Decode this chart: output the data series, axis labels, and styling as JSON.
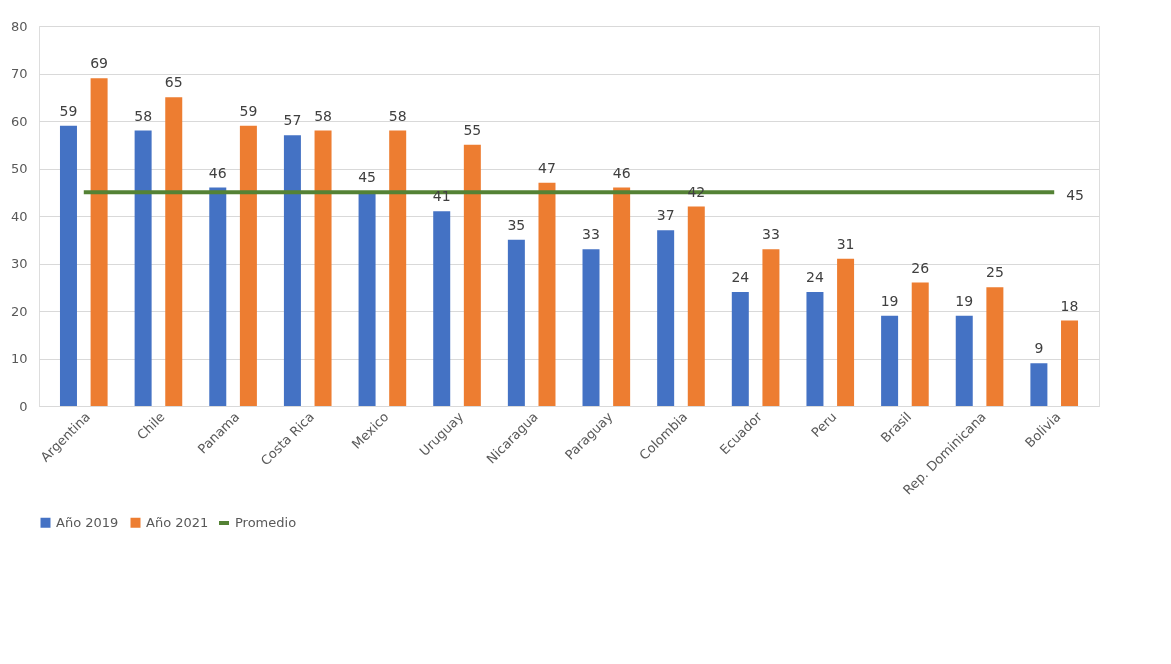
{
  "chart_data": {
    "type": "bar",
    "categories": [
      "Argentina",
      "Chile",
      "Panama",
      "Costa Rica",
      "Mexico",
      "Uruguay",
      "Nicaragua",
      "Paraguay",
      "Colombia",
      "Ecuador",
      "Peru",
      "Brasil",
      "Rep. Dominicana",
      "Bolivia"
    ],
    "series": [
      {
        "name": "Año 2019",
        "color": "#4472c4",
        "values": [
          59,
          58,
          46,
          57,
          45,
          41,
          35,
          33,
          37,
          24,
          24,
          19,
          19,
          9
        ]
      },
      {
        "name": "Año 2021",
        "color": "#ed7d31",
        "values": [
          69,
          65,
          59,
          58,
          58,
          55,
          47,
          46,
          42,
          33,
          31,
          26,
          25,
          18
        ]
      },
      {
        "name": "Promedio",
        "type": "line",
        "color": "#548235",
        "values": [
          45,
          45,
          45,
          45,
          45,
          45,
          45,
          45,
          45,
          45,
          45,
          45,
          45,
          45
        ],
        "value_labels": [
          null,
          null,
          null,
          null,
          null,
          null,
          null,
          null,
          null,
          null,
          null,
          null,
          null,
          "45"
        ]
      }
    ],
    "ylim": [
      0,
      80
    ],
    "yticks": [
      0,
      10,
      20,
      30,
      40,
      50,
      60,
      70,
      80
    ],
    "grid": "y",
    "legend": "bottom",
    "data_labels": true
  }
}
